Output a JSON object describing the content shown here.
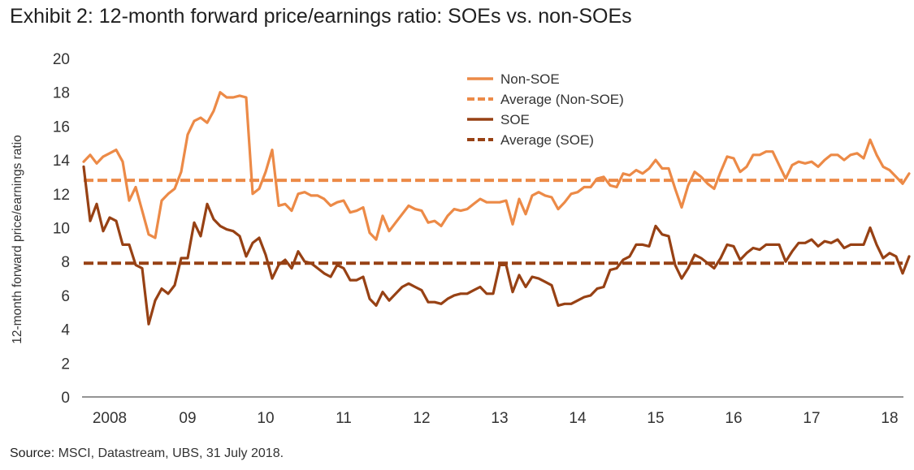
{
  "title": "Exhibit 2: 12-month forward price/earnings ratio: SOEs vs. non-SOEs",
  "source": {
    "label": "Source:",
    "text": " MSCI, Datastream, UBS, 31 July 2018."
  },
  "colors": {
    "non_soe": "#ec8a47",
    "soe": "#974114",
    "axis": "#555555",
    "text": "#333333"
  },
  "chart_data": {
    "type": "line",
    "title": "Exhibit 2: 12-month forward price/earnings ratio: SOEs vs. non-SOEs",
    "xlabel": "",
    "ylabel": "12-month forward price/earnings ratio",
    "ylim": [
      0,
      20
    ],
    "yticks": [
      0,
      2,
      4,
      6,
      8,
      10,
      12,
      14,
      16,
      18,
      20
    ],
    "xlim": [
      "2008-01",
      "2018-07"
    ],
    "xtick_labels": [
      {
        "label": "2008",
        "x": "2008-05"
      },
      {
        "label": "09",
        "x": "2009-05"
      },
      {
        "label": "10",
        "x": "2010-05"
      },
      {
        "label": "11",
        "x": "2011-05"
      },
      {
        "label": "12",
        "x": "2012-05"
      },
      {
        "label": "13",
        "x": "2013-05"
      },
      {
        "label": "14",
        "x": "2014-05"
      },
      {
        "label": "15",
        "x": "2015-05"
      },
      {
        "label": "16",
        "x": "2016-05"
      },
      {
        "label": "17",
        "x": "2017-05"
      },
      {
        "label": "18",
        "x": "2018-05"
      }
    ],
    "legend_position": "top-right",
    "grid": false,
    "series": [
      {
        "name": "Non-SOE",
        "style": "solid",
        "x_start": "2008-01",
        "x_step": "month",
        "values": [
          13.9,
          14.3,
          13.8,
          14.2,
          14.4,
          14.6,
          13.9,
          11.6,
          12.4,
          11.0,
          9.6,
          9.4,
          11.6,
          12.0,
          12.3,
          13.3,
          15.5,
          16.3,
          16.5,
          16.2,
          16.9,
          18.0,
          17.7,
          17.7,
          17.8,
          17.7,
          12.0,
          12.3,
          13.3,
          14.6,
          11.3,
          11.4,
          11.0,
          12.0,
          12.1,
          11.9,
          11.9,
          11.7,
          11.3,
          11.5,
          11.6,
          10.9,
          11.0,
          11.2,
          9.7,
          9.3,
          10.7,
          9.8,
          10.3,
          10.8,
          11.3,
          11.1,
          11.0,
          10.3,
          10.4,
          10.1,
          10.7,
          11.1,
          11.0,
          11.1,
          11.4,
          11.7,
          11.5,
          11.5,
          11.5,
          11.6,
          10.2,
          11.7,
          10.8,
          11.9,
          12.1,
          11.9,
          11.8,
          11.1,
          11.5,
          12.0,
          12.1,
          12.4,
          12.4,
          12.9,
          13.0,
          12.5,
          12.4,
          13.2,
          13.1,
          13.4,
          13.2,
          13.5,
          14.0,
          13.5,
          13.5,
          12.3,
          11.2,
          12.5,
          13.3,
          13.0,
          12.6,
          12.3,
          13.3,
          14.2,
          14.1,
          13.3,
          13.6,
          14.3,
          14.3,
          14.5,
          14.5,
          13.7,
          12.9,
          13.7,
          13.9,
          13.8,
          13.9,
          13.6,
          14.0,
          14.3,
          14.3,
          14.0,
          14.3,
          14.4,
          14.1,
          15.2,
          14.3,
          13.6,
          13.4,
          13.0,
          12.6,
          13.2
        ]
      },
      {
        "name": "Average (Non-SOE)",
        "style": "dashed",
        "values": [
          12.8
        ]
      },
      {
        "name": "SOE",
        "style": "solid",
        "x_start": "2008-01",
        "x_step": "month",
        "values": [
          13.6,
          10.4,
          11.4,
          9.8,
          10.6,
          10.4,
          9.0,
          9.0,
          7.8,
          7.6,
          4.3,
          5.7,
          6.4,
          6.1,
          6.6,
          8.2,
          8.2,
          10.3,
          9.5,
          11.4,
          10.5,
          10.1,
          9.9,
          9.8,
          9.5,
          8.3,
          9.1,
          9.4,
          8.4,
          7.0,
          7.8,
          8.1,
          7.6,
          8.6,
          8.0,
          7.9,
          7.6,
          7.3,
          7.1,
          7.8,
          7.6,
          6.9,
          6.9,
          7.1,
          5.8,
          5.4,
          6.2,
          5.7,
          6.1,
          6.5,
          6.7,
          6.5,
          6.3,
          5.6,
          5.6,
          5.5,
          5.8,
          6.0,
          6.1,
          6.1,
          6.3,
          6.5,
          6.1,
          6.1,
          7.8,
          7.8,
          6.2,
          7.2,
          6.5,
          7.1,
          7.0,
          6.8,
          6.6,
          5.4,
          5.5,
          5.5,
          5.7,
          5.9,
          6.0,
          6.4,
          6.5,
          7.5,
          7.6,
          8.1,
          8.3,
          9.0,
          9.0,
          8.9,
          10.1,
          9.6,
          9.5,
          7.8,
          7.0,
          7.6,
          8.4,
          8.2,
          7.9,
          7.6,
          8.2,
          9.0,
          8.9,
          8.1,
          8.5,
          8.8,
          8.7,
          9.0,
          9.0,
          9.0,
          8.0,
          8.6,
          9.1,
          9.1,
          9.3,
          8.9,
          9.2,
          9.1,
          9.3,
          8.8,
          9.0,
          9.0,
          9.0,
          10.0,
          9.0,
          8.2,
          8.5,
          8.3,
          7.3,
          8.3
        ]
      },
      {
        "name": "Average (SOE)",
        "style": "dashed",
        "values": [
          7.9
        ]
      }
    ]
  }
}
